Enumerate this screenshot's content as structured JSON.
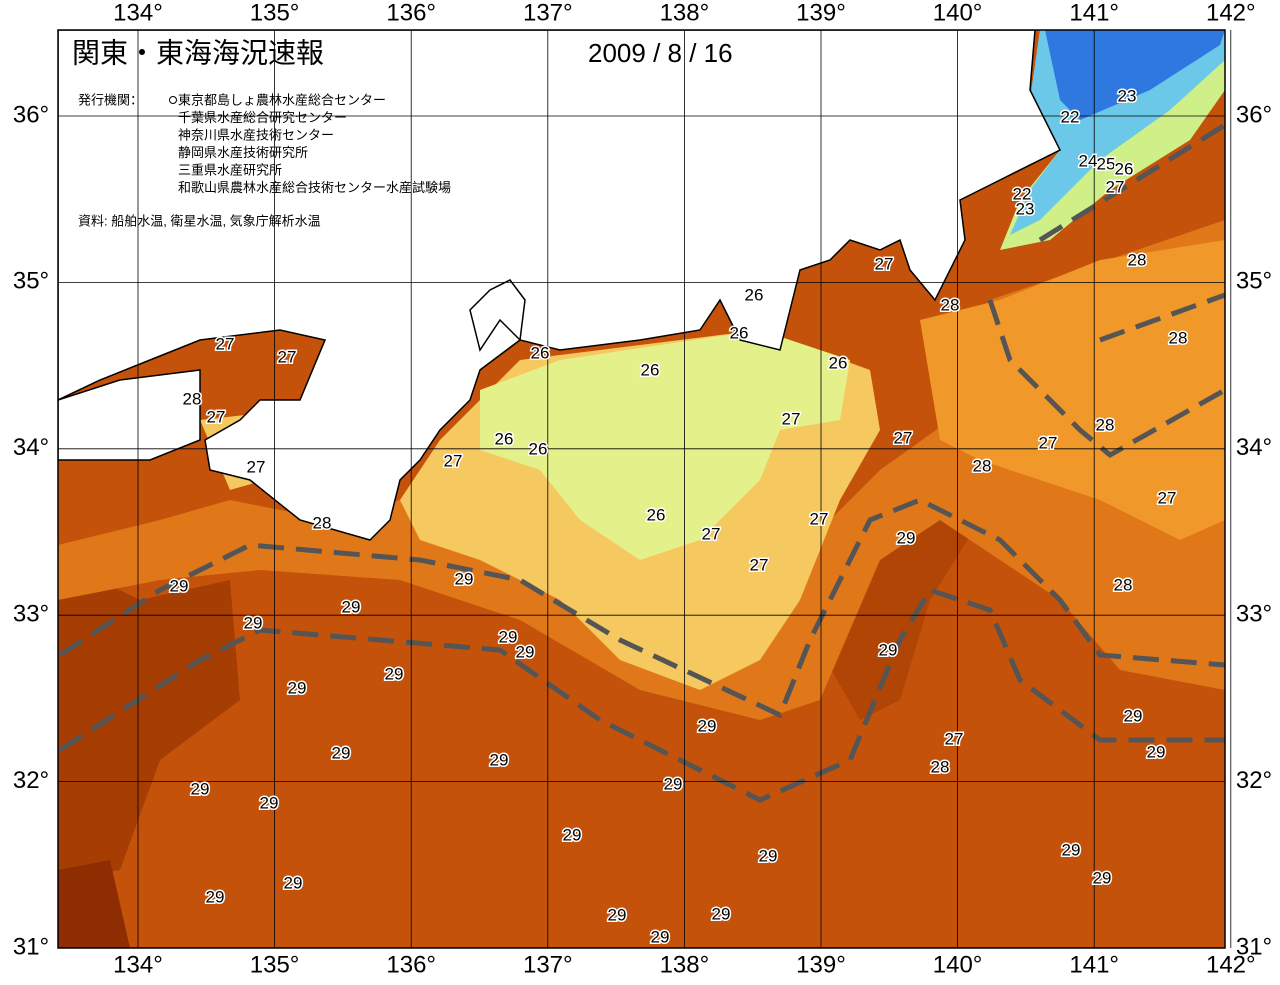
{
  "header": {
    "title": "関東・東海海況速報",
    "date": "2009 / 8 / 16",
    "publisher_label": "発行機関：",
    "publishers": [
      "東京都島しょ農林水産総合センター",
      "千葉県水産総合研究センター",
      "神奈川県水産技術センター",
      "静岡県水産技術研究所",
      "三重県水産研究所",
      "和歌山県農林水産総合技術センター水産試験場"
    ],
    "source": "資料: 船舶水温, 衛星水温, 気象庁解析水温"
  },
  "map": {
    "lon_ticks": [
      {
        "value": 134,
        "label": "134°"
      },
      {
        "value": 135,
        "label": "135°"
      },
      {
        "value": 136,
        "label": "136°"
      },
      {
        "value": 137,
        "label": "137°"
      },
      {
        "value": 138,
        "label": "138°"
      },
      {
        "value": 139,
        "label": "139°"
      },
      {
        "value": 140,
        "label": "140°"
      },
      {
        "value": 141,
        "label": "141°"
      },
      {
        "value": 142,
        "label": "142°"
      }
    ],
    "lat_ticks": [
      {
        "value": 31,
        "label": "31°"
      },
      {
        "value": 32,
        "label": "32°"
      },
      {
        "value": 33,
        "label": "33°"
      },
      {
        "value": 34,
        "label": "34°"
      },
      {
        "value": 35,
        "label": "35°"
      },
      {
        "value": 36,
        "label": "36°"
      }
    ],
    "contour_labels": [
      23,
      22,
      24,
      25,
      26,
      27,
      22,
      23,
      27,
      28,
      26,
      28,
      28,
      26,
      26,
      27,
      27,
      26,
      26,
      28,
      27,
      27,
      28,
      26,
      26,
      27,
      27,
      27,
      27,
      28,
      27,
      26,
      27,
      28,
      27,
      29,
      27,
      29,
      29,
      28,
      29,
      29,
      29,
      29,
      29,
      29,
      29,
      29,
      29,
      27,
      29,
      29,
      29,
      28,
      29,
      29,
      29,
      29,
      29,
      29,
      29,
      29,
      29,
      29,
      29,
      29
    ]
  }
}
